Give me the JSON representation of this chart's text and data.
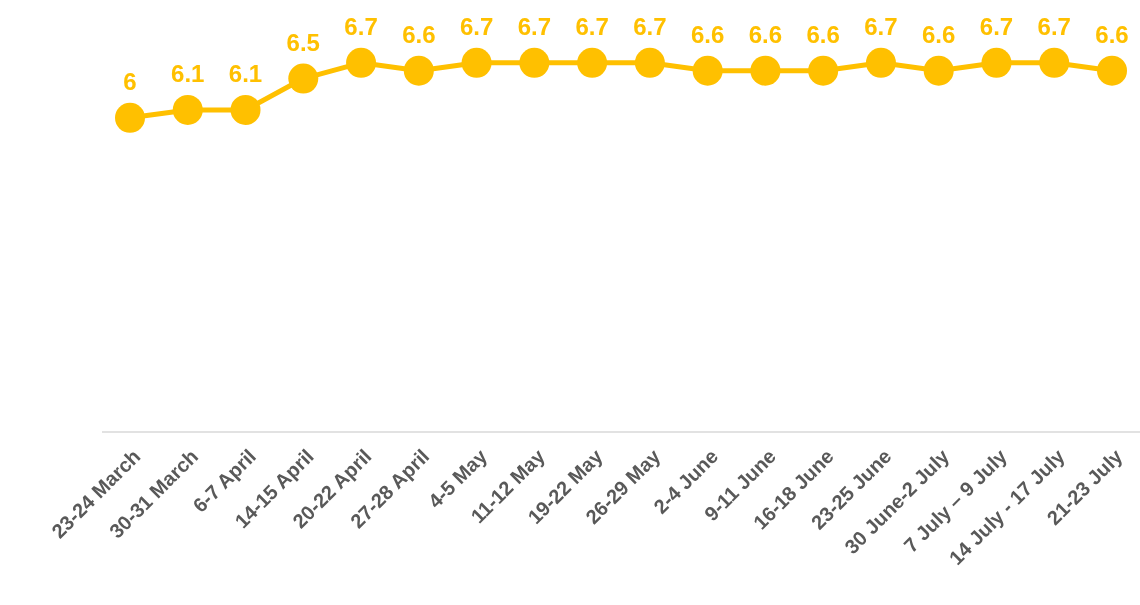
{
  "chart_data": {
    "type": "line",
    "categories": [
      "23-24 March",
      "30-31 March",
      "6-7 April",
      "14-15 April",
      "20-22 April",
      "27-28 April",
      "4-5 May",
      "11-12 May",
      "19-22 May",
      "26-29 May",
      "2-4 June",
      "9-11 June",
      "16-18 June",
      "23-25 June",
      "30 June-2 July",
      "7 July – 9 July",
      "14 July - 17 July",
      "21-23 July"
    ],
    "series": [
      {
        "color": "#ffc000",
        "values": [
          6,
          6.1,
          6.1,
          6.5,
          6.7,
          6.6,
          6.7,
          6.7,
          6.7,
          6.7,
          6.6,
          6.6,
          6.6,
          6.7,
          6.6,
          6.7,
          6.7,
          6.6
        ]
      }
    ],
    "ylim": [
      2,
      7.5
    ],
    "data_labels": true,
    "marker": "circle",
    "line_style": "solid",
    "tick_labels": "x"
  }
}
